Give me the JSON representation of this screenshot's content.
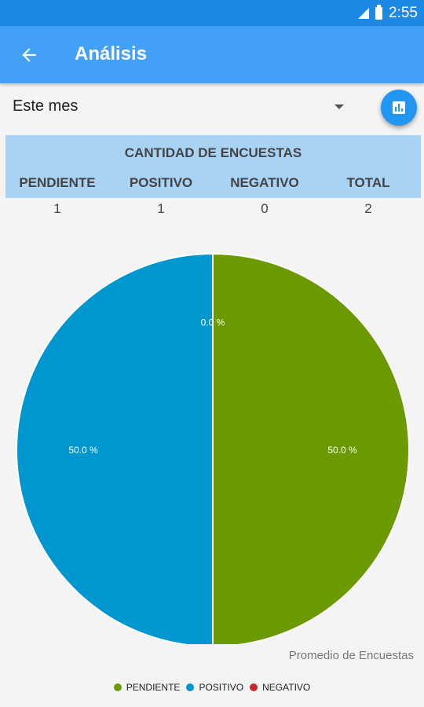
{
  "status_bar": {
    "time": "2:55"
  },
  "app_bar": {
    "title": "Análisis"
  },
  "filter": {
    "selected": "Este mes"
  },
  "summary_table": {
    "title": "CANTIDAD DE ENCUESTAS",
    "columns": [
      "PENDIENTE",
      "POSITIVO",
      "NEGATIVO",
      "TOTAL"
    ],
    "values": [
      "1",
      "1",
      "0",
      "2"
    ]
  },
  "chart_data": {
    "type": "pie",
    "description": "Promedio de Encuestas",
    "categories": [
      "PENDIENTE",
      "POSITIVO",
      "NEGATIVO"
    ],
    "values": [
      50.0,
      50.0,
      0.0
    ],
    "labels": [
      "50.0 %",
      "50.0 %",
      "0.0 %"
    ],
    "colors": [
      "#6a9a00",
      "#0096cf",
      "#c62828"
    ],
    "legend_position": "bottom-center"
  },
  "icons": {
    "back": "arrow-back-icon",
    "chart_toggle": "bar-chart-icon",
    "dropdown": "caret-down-icon"
  }
}
